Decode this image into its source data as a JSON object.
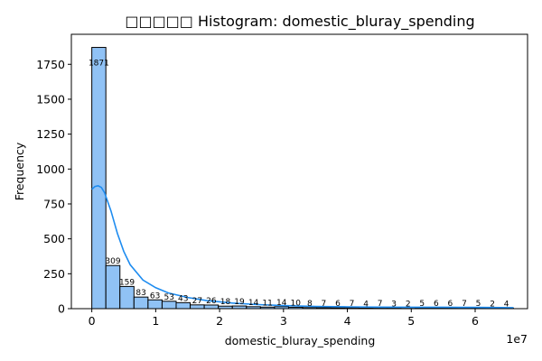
{
  "chart_data": {
    "type": "bar",
    "title": "□□□□□ Histogram: domestic_bluray_spending",
    "xlabel": "domestic_bluray_spending",
    "ylabel": "Frequency",
    "x_offset_text": "1e7",
    "bin_width": 0.22,
    "x_start": 0.0,
    "xlim": [
      -0.32,
      6.82
    ],
    "ylim": [
      0,
      1965
    ],
    "x_ticks": [
      0,
      1,
      2,
      3,
      4,
      5,
      6
    ],
    "y_ticks": [
      0,
      250,
      500,
      750,
      1000,
      1250,
      1500,
      1750
    ],
    "values": [
      1871,
      309,
      159,
      83,
      63,
      53,
      43,
      27,
      26,
      18,
      19,
      14,
      11,
      14,
      10,
      8,
      7,
      6,
      7,
      4,
      7,
      3,
      2,
      5,
      6,
      6,
      7,
      5,
      2,
      4
    ],
    "kde": {
      "x": [
        0.0,
        0.05,
        0.1,
        0.15,
        0.2,
        0.3,
        0.4,
        0.5,
        0.6,
        0.8,
        1.0,
        1.2,
        1.5,
        1.8,
        2.2,
        2.6,
        3.0,
        3.5,
        4.0,
        4.5,
        5.0,
        5.5,
        6.0,
        6.6
      ],
      "y": [
        855,
        875,
        880,
        868,
        830,
        700,
        540,
        410,
        315,
        205,
        150,
        112,
        80,
        58,
        40,
        29,
        22,
        16,
        13,
        11,
        10,
        10,
        9,
        7
      ]
    },
    "grid": false,
    "legend": "none"
  }
}
